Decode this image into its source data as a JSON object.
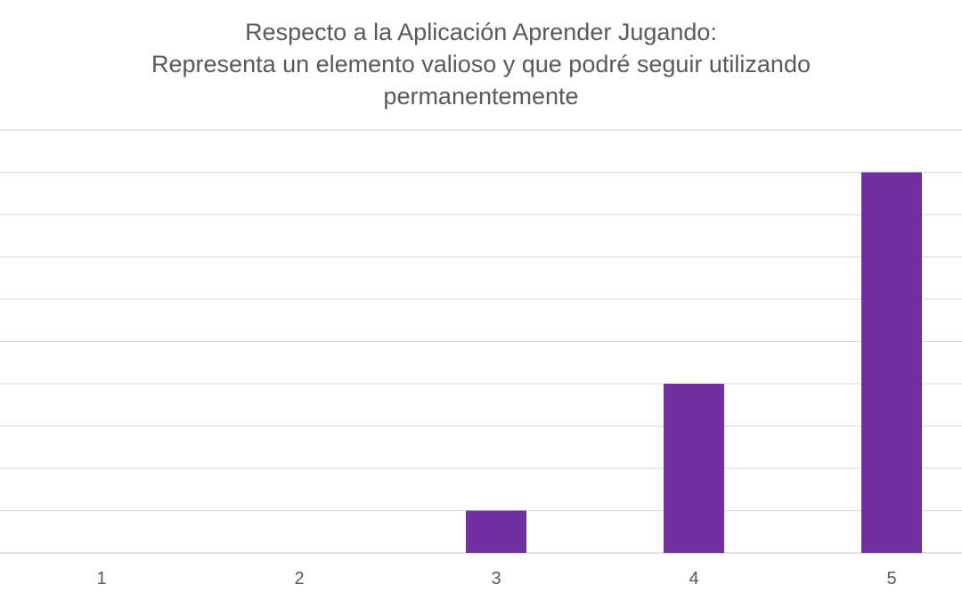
{
  "chart_data": {
    "type": "bar",
    "title_lines": [
      "Respecto a la Aplicación Aprender Jugando:",
      "Representa un elemento valioso y que podré seguir utilizando",
      "permanentemente"
    ],
    "categories": [
      "1",
      "2",
      "3",
      "4",
      "5"
    ],
    "values": [
      0,
      0,
      1,
      4,
      9
    ],
    "ylim": [
      0,
      10
    ],
    "grid": true,
    "bar_color": "#7030A0",
    "grid_color": "#d9d9d9",
    "text_color": "#595959"
  }
}
